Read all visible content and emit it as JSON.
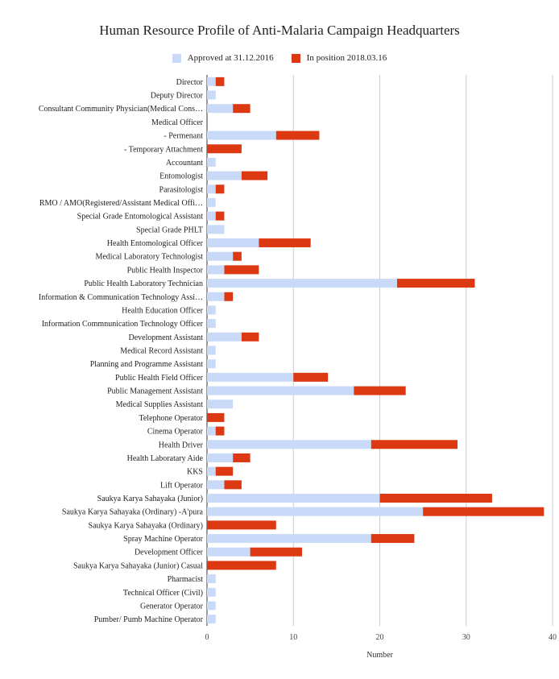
{
  "chart_data": {
    "type": "bar",
    "orientation": "horizontal",
    "stacked": true,
    "title": "Human Resource Profile of Anti-Malaria Campaign Headquarters",
    "xlabel": "Number",
    "ylabel": "",
    "xlim": [
      0,
      40
    ],
    "xticks": [
      0,
      10,
      20,
      30,
      40
    ],
    "grid": true,
    "legend_position": "top",
    "categories": [
      "Director",
      "Deputy Director",
      "Consultant Community Physician(Medical Cons…",
      "Medical Officer",
      "- Permenant",
      "- Temporary Attachment",
      "Accountant",
      "Entomologist",
      "Parasitologist",
      "RMO / AMO(Registered/Assistant Medical Offi…",
      "Special Grade Entomological Assistant",
      "Special Grade PHLT",
      "Health Entomological Officer",
      "Medical Laboratory Technologist",
      "Public Health Inspector",
      "Public Health Laboratory Technician",
      "Information & Communication Technology Assi…",
      "Health Education Officer",
      "Information Commnunication Technology Officer",
      "Development Assistant",
      "Medical Record Assistant",
      "Planning and Programme Assistant",
      "Public Health Field Officer",
      "Public Management Assistant",
      "Medical Supplies Assistant",
      "Telephone Operator",
      "Cinema Operator",
      "Health Driver",
      "Health Laboratary Aide",
      "KKS",
      "Lift Operator",
      "Saukya Karya Sahayaka (Junior)",
      "Saukya Karya Sahayaka (Ordinary) -A'pura",
      "Saukya Karya Sahayaka (Ordinary)",
      "Spray Machine Operator",
      "Development Officer",
      "Saukya Karya Sahayaka (Junior) Casual",
      "Pharmacist",
      "Technical Officer (Civil)",
      "Generator Operator",
      "Pumber/ Pumb Machine Operator"
    ],
    "series": [
      {
        "name": "Approved at 31.12.2016",
        "color": "#c9daf8",
        "values": [
          1,
          1,
          3,
          0,
          8,
          0,
          1,
          4,
          1,
          1,
          1,
          2,
          6,
          3,
          2,
          22,
          2,
          1,
          1,
          4,
          1,
          1,
          10,
          17,
          3,
          0,
          1,
          19,
          3,
          1,
          2,
          20,
          25,
          0,
          19,
          5,
          0,
          1,
          1,
          1,
          1
        ]
      },
      {
        "name": "In position  2018.03.16",
        "color": "#dc3912",
        "values": [
          1,
          0,
          2,
          0,
          5,
          4,
          0,
          3,
          1,
          0,
          1,
          0,
          6,
          1,
          4,
          9,
          1,
          0,
          0,
          2,
          0,
          0,
          4,
          6,
          0,
          2,
          1,
          10,
          2,
          2,
          2,
          13,
          14,
          8,
          5,
          6,
          8,
          0,
          0,
          0,
          0
        ]
      }
    ]
  }
}
